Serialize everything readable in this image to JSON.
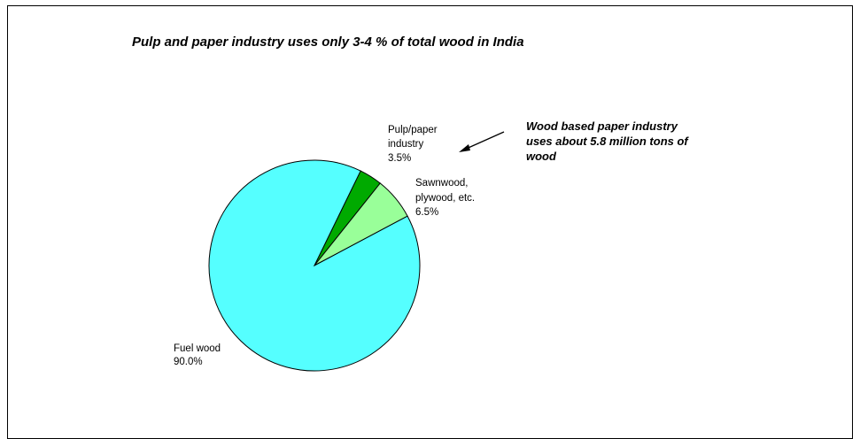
{
  "chart_data": {
    "type": "pie",
    "title": "Pulp and paper industry uses only 3-4 % of total wood in India",
    "slices": [
      {
        "key": "pulp",
        "label_lines": [
          "Pulp/paper",
          "industry"
        ],
        "value_text": "3.5%",
        "value": 3.5,
        "color": "#00AA00"
      },
      {
        "key": "sawnwood",
        "label_lines": [
          "Sawnwood,",
          "plywood, etc."
        ],
        "value_text": "6.5%",
        "value": 6.5,
        "color": "#99FF99"
      },
      {
        "key": "fuel",
        "label_lines": [
          "Fuel wood"
        ],
        "value_text": "90.0%",
        "value": 90.0,
        "color": "#55FFFF"
      }
    ],
    "annotation": {
      "lines": [
        "Wood based paper industry",
        "uses about 5.8 million tons of",
        "wood"
      ]
    }
  }
}
